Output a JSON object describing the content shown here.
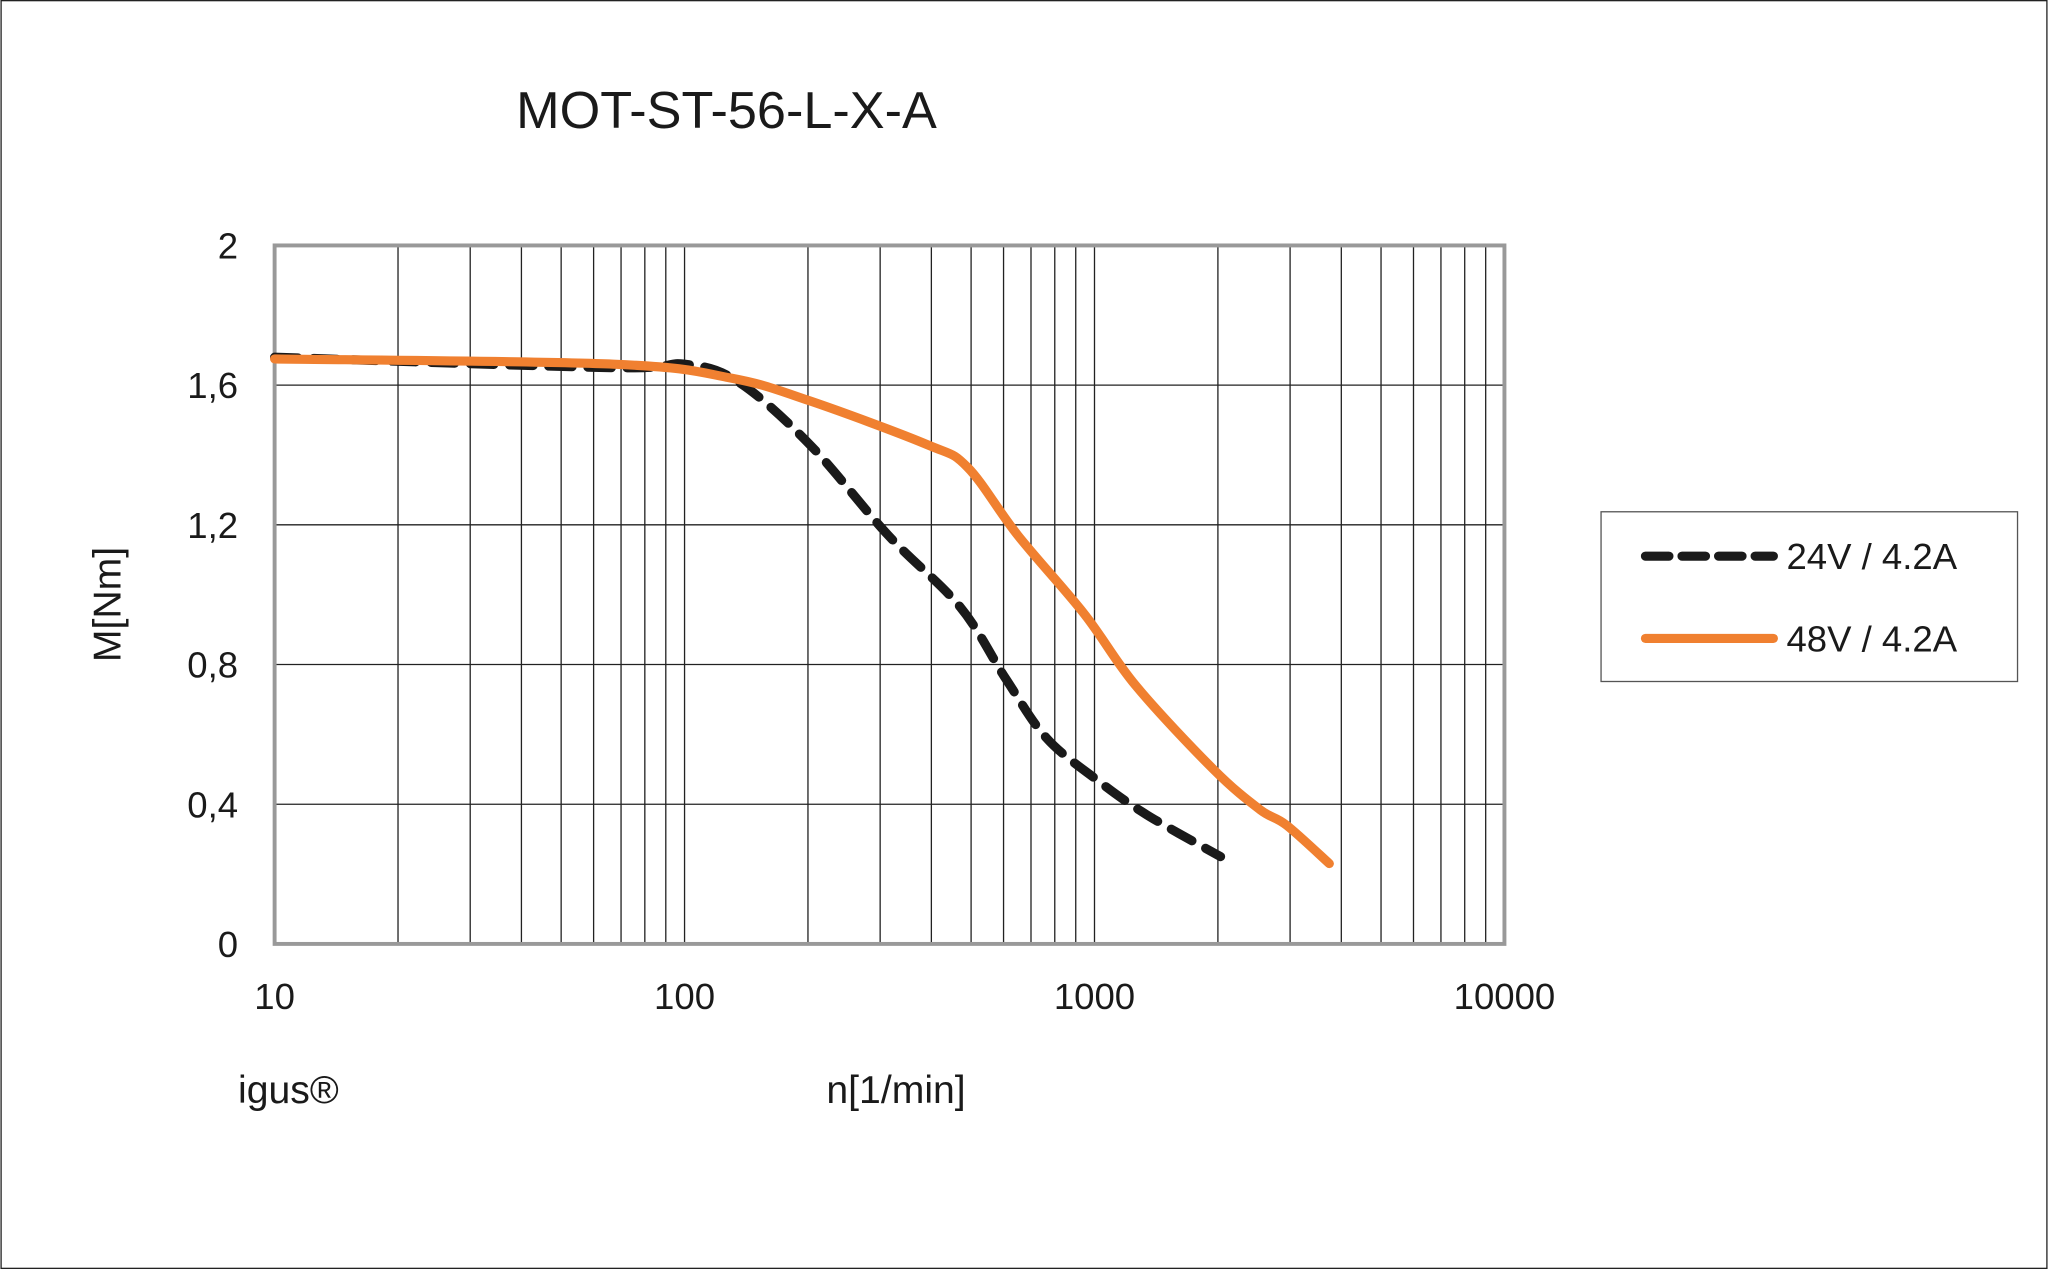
{
  "chart_data": {
    "type": "line",
    "title": "MOT-ST-56-L-X-A",
    "xlabel": "n[1/min]",
    "ylabel": "M[Nm]",
    "x_scale": "log",
    "xlim": [
      10,
      10000
    ],
    "ylim": [
      0,
      2
    ],
    "x_ticks": [
      10,
      100,
      1000,
      10000
    ],
    "x_tick_labels": [
      "10",
      "100",
      "1000",
      "10000"
    ],
    "y_ticks": [
      0,
      0.4,
      0.8,
      1.2,
      1.6,
      2
    ],
    "y_tick_labels": [
      "0",
      "0,4",
      "0,8",
      "1,2",
      "1,6",
      "2"
    ],
    "grid": true,
    "legend_position": "right",
    "watermark": "igus®",
    "series": [
      {
        "name": "24V / 4.2A",
        "color": "#1a1a1a",
        "style": "dashed",
        "x": [
          10,
          67,
          100,
          135,
          202,
          314,
          470,
          607,
          763,
          1013,
          1340,
          2030
        ],
        "y": [
          1.68,
          1.65,
          1.66,
          1.61,
          1.43,
          1.17,
          0.965,
          0.76,
          0.59,
          0.47,
          0.37,
          0.25
        ]
      },
      {
        "name": "48V / 4.2A",
        "color": "#f08030",
        "style": "solid",
        "x": [
          10,
          67,
          130,
          202,
          390,
          490,
          650,
          944,
          1260,
          1950,
          2530,
          2940,
          3740
        ],
        "y": [
          1.675,
          1.66,
          1.62,
          1.555,
          1.43,
          1.365,
          1.17,
          0.945,
          0.74,
          0.5,
          0.385,
          0.34,
          0.23
        ]
      }
    ]
  }
}
